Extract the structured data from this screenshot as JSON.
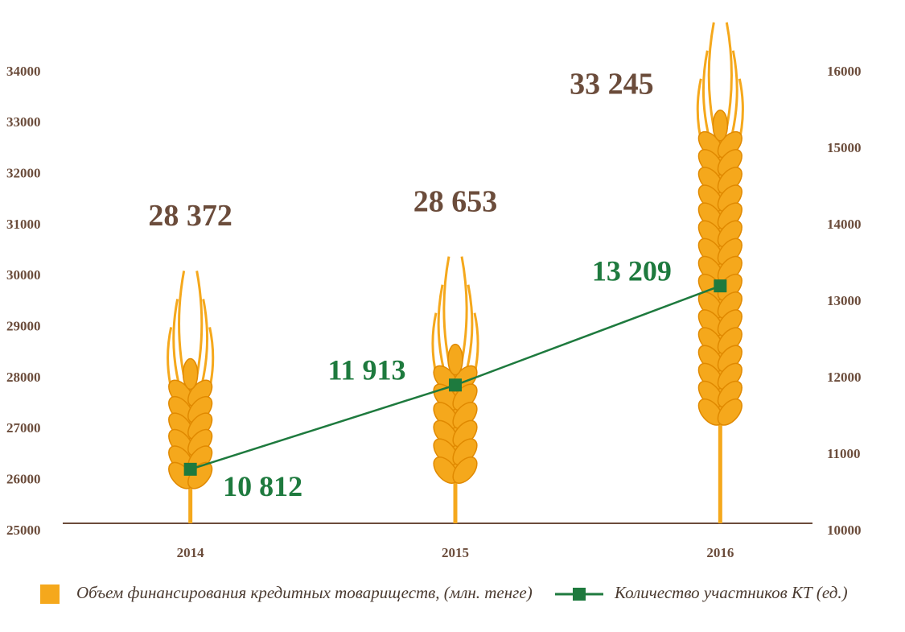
{
  "chart_data": {
    "type": "bar",
    "categories": [
      "2014",
      "2015",
      "2016"
    ],
    "series": [
      {
        "name": "Объем финансирования кредитных товариществ, (млн. тенге)",
        "color": "#f5a81c",
        "values": [
          28372,
          28653,
          33245
        ],
        "value_labels": [
          "28 372",
          "28 653",
          "33 245"
        ]
      },
      {
        "name": "Количество участников КТ (ед.)",
        "color": "#1e7a3e",
        "type": "line",
        "axis": "y2",
        "values": [
          10812,
          11913,
          13209
        ],
        "value_labels": [
          "10 812",
          "11 913",
          "13 209"
        ]
      }
    ],
    "ylim": [
      25000,
      34000
    ],
    "yticks": [
      25000,
      26000,
      27000,
      28000,
      29000,
      30000,
      31000,
      32000,
      33000,
      34000
    ],
    "y2lim": [
      10000,
      16000
    ],
    "y2ticks": [
      10000,
      11000,
      12000,
      13000,
      14000,
      15000,
      16000
    ],
    "grid": false
  }
}
